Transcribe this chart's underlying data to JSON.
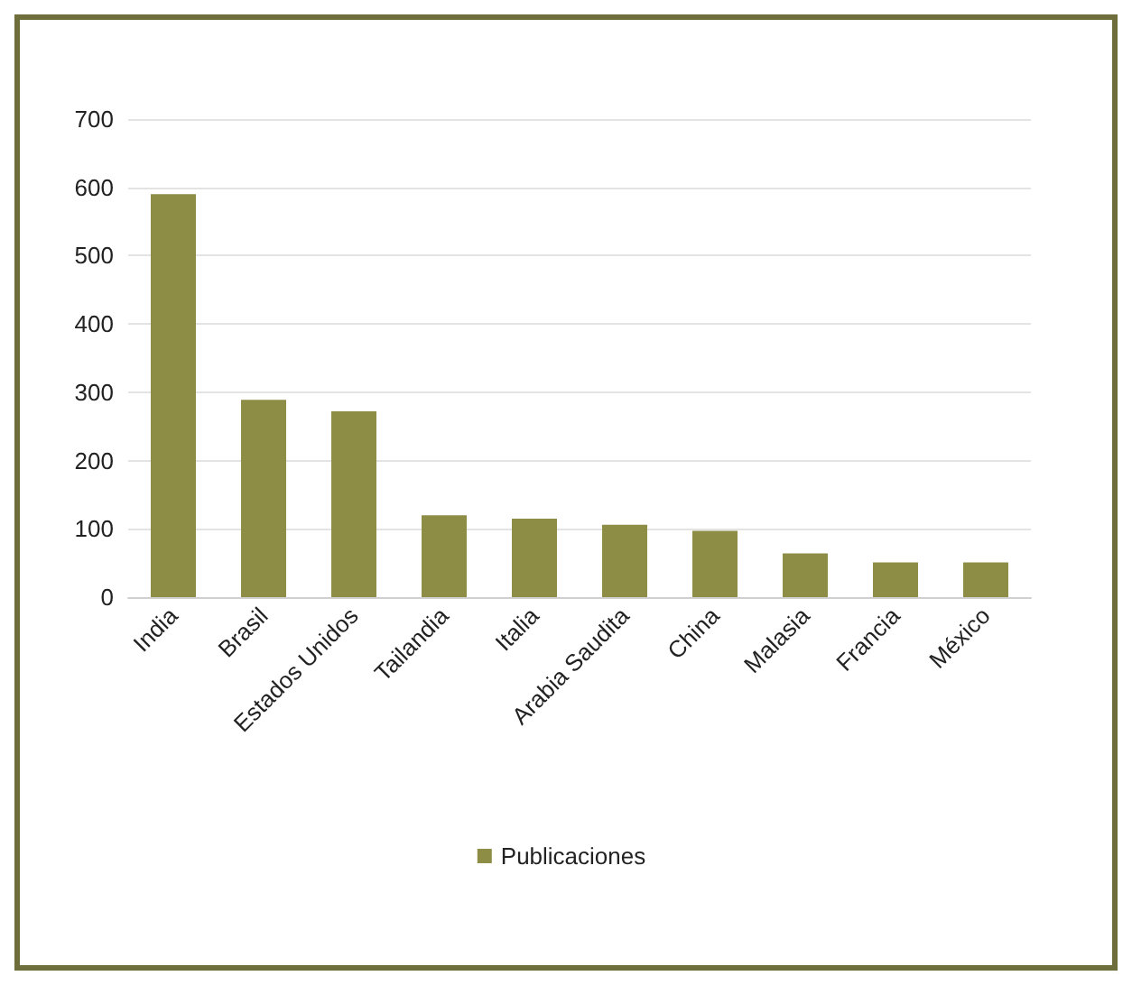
{
  "chart_data": {
    "type": "bar",
    "categories": [
      "India",
      "Brasil",
      "Estados Unidos",
      "Tailandia",
      "Italia",
      "Arabia Saudita",
      "China",
      "Malasia",
      "Francia",
      "México"
    ],
    "series": [
      {
        "name": "Publicaciones",
        "color": "#8e8d45",
        "values": [
          590,
          289,
          272,
          120,
          115,
          106,
          97,
          64,
          51,
          51
        ]
      }
    ],
    "ylim": [
      0,
      700
    ],
    "yticks": [
      0,
      100,
      200,
      300,
      400,
      500,
      600,
      700
    ],
    "grid": "y",
    "legend": "bottom"
  }
}
